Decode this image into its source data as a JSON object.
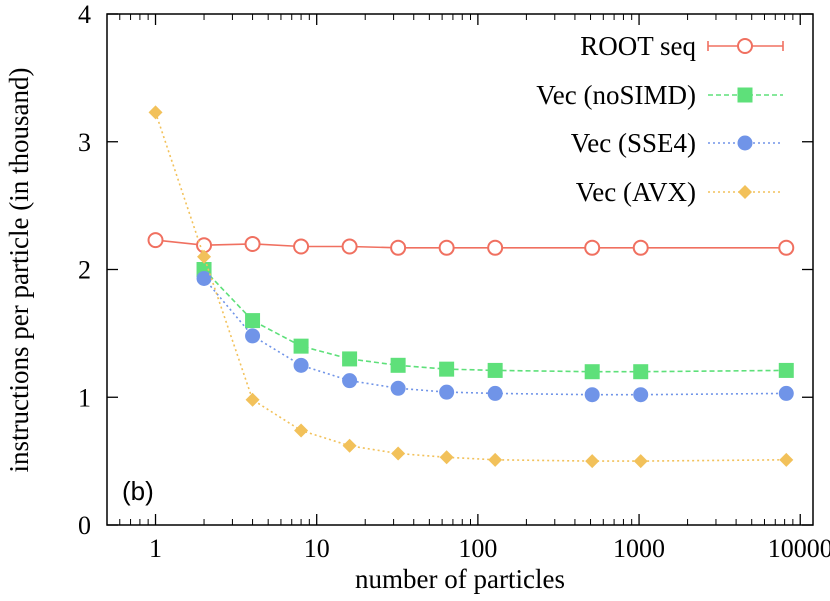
{
  "chart_data": {
    "type": "line",
    "xscale": "log",
    "xlabel": "number of particles",
    "ylabel": "instructions per particle (in thousand)",
    "xlim": [
      0.5,
      12000
    ],
    "ylim": [
      0,
      4
    ],
    "x_ticks": [
      {
        "value": 1,
        "label": "1"
      },
      {
        "value": 10,
        "label": "10"
      },
      {
        "value": 100,
        "label": "100"
      },
      {
        "value": 1000,
        "label": "1000"
      },
      {
        "value": 10000,
        "label": "10000"
      }
    ],
    "y_ticks": [
      {
        "value": 0,
        "label": "0"
      },
      {
        "value": 1,
        "label": "1"
      },
      {
        "value": 2,
        "label": "2"
      },
      {
        "value": 3,
        "label": "3"
      },
      {
        "value": 4,
        "label": "4"
      }
    ],
    "annotation": "(b)",
    "legend_position": "top-right",
    "grid": false,
    "x": [
      1,
      2,
      4,
      8,
      16,
      32,
      64,
      128,
      512,
      1024,
      8192
    ],
    "series": [
      {
        "name": "ROOT seq",
        "color": "#f07060",
        "marker": "open-circle",
        "dash": "solid",
        "points": [
          [
            1,
            2.23
          ],
          [
            2,
            2.19
          ],
          [
            4,
            2.2
          ],
          [
            8,
            2.18
          ],
          [
            16,
            2.18
          ],
          [
            32,
            2.17
          ],
          [
            64,
            2.17
          ],
          [
            128,
            2.17
          ],
          [
            512,
            2.17
          ],
          [
            1024,
            2.17
          ],
          [
            8192,
            2.17
          ]
        ]
      },
      {
        "name": "Vec (noSIMD)",
        "color": "#5ee07a",
        "marker": "square",
        "dash": "dashed",
        "points": [
          [
            2,
            2.0
          ],
          [
            4,
            1.6
          ],
          [
            8,
            1.4
          ],
          [
            16,
            1.3
          ],
          [
            32,
            1.25
          ],
          [
            64,
            1.22
          ],
          [
            128,
            1.21
          ],
          [
            512,
            1.2
          ],
          [
            1024,
            1.2
          ],
          [
            8192,
            1.21
          ]
        ]
      },
      {
        "name": "Vec (SSE4)",
        "color": "#7094e8",
        "marker": "circle",
        "dash": "dotted",
        "points": [
          [
            2,
            1.93
          ],
          [
            4,
            1.48
          ],
          [
            8,
            1.25
          ],
          [
            16,
            1.13
          ],
          [
            32,
            1.07
          ],
          [
            64,
            1.04
          ],
          [
            128,
            1.03
          ],
          [
            512,
            1.02
          ],
          [
            1024,
            1.02
          ],
          [
            8192,
            1.03
          ]
        ]
      },
      {
        "name": "Vec (AVX)",
        "color": "#f2c15a",
        "marker": "diamond",
        "dash": "dotted",
        "points": [
          [
            1,
            3.23
          ],
          [
            2,
            2.1
          ],
          [
            4,
            0.98
          ],
          [
            8,
            0.74
          ],
          [
            16,
            0.62
          ],
          [
            32,
            0.56
          ],
          [
            64,
            0.53
          ],
          [
            128,
            0.51
          ],
          [
            512,
            0.5
          ],
          [
            1024,
            0.5
          ],
          [
            8192,
            0.51
          ]
        ]
      }
    ]
  }
}
